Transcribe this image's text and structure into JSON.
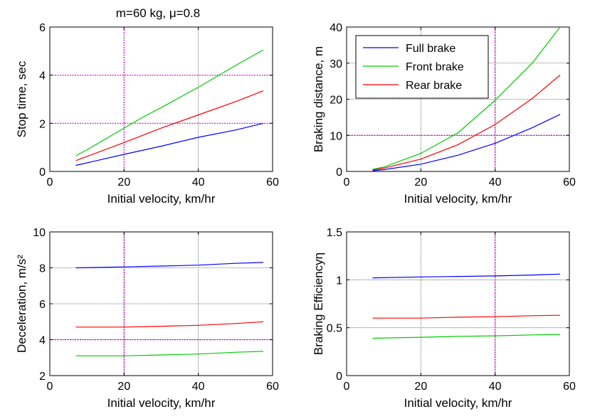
{
  "figure": {
    "title": "m=60 kg, μ=0.8"
  },
  "colors": {
    "full": "#0000ff",
    "front": "#00cc00",
    "rear": "#ff0000",
    "guide": "#cc00cc",
    "grid": "#555555"
  },
  "chart_data": [
    {
      "type": "line",
      "panel": "top-left",
      "title": "m=60 kg, μ=0.8",
      "xlabel": "Initial velocity, km/hr",
      "ylabel": "Stop time, sec",
      "xlim": [
        0,
        60
      ],
      "ylim": [
        0,
        6
      ],
      "xticks": [
        "0",
        "20",
        "40",
        "60"
      ],
      "yticks": [
        "0",
        "2",
        "4",
        "6"
      ],
      "grid": false,
      "guides": {
        "x": [
          20
        ],
        "y": [
          2,
          4
        ],
        "gray_x": [
          40
        ]
      },
      "series": [
        {
          "key": "full",
          "x": [
            7,
            20,
            30,
            40,
            50,
            57.5
          ],
          "y": [
            0.25,
            0.71,
            1.05,
            1.42,
            1.72,
            2.0
          ]
        },
        {
          "key": "front",
          "x": [
            7,
            10,
            20,
            25,
            30,
            40,
            45,
            50,
            57.5
          ],
          "y": [
            0.65,
            0.9,
            1.8,
            2.25,
            2.65,
            3.5,
            3.95,
            4.4,
            5.05
          ]
        },
        {
          "key": "rear",
          "x": [
            7,
            20,
            30,
            40,
            50,
            57.5
          ],
          "y": [
            0.45,
            1.2,
            1.8,
            2.35,
            2.9,
            3.35
          ]
        }
      ]
    },
    {
      "type": "line",
      "panel": "top-right",
      "xlabel": "Initial velocity, km/hr",
      "ylabel": "Braking distance, m",
      "xlim": [
        0,
        60
      ],
      "ylim": [
        0,
        40
      ],
      "xticks": [
        "0",
        "20",
        "40",
        "60"
      ],
      "yticks": [
        "0",
        "10",
        "20",
        "30",
        "40"
      ],
      "grid": true,
      "guides": {
        "x": [
          40
        ],
        "y": [
          10
        ]
      },
      "legend": {
        "position": "top-left",
        "entries": [
          "Full brake",
          "Front brake",
          "Rear brake"
        ]
      },
      "series": [
        {
          "key": "full",
          "name": "Full brake",
          "x": [
            7,
            10,
            20,
            30,
            40,
            50,
            57.5
          ],
          "y": [
            0.2,
            0.5,
            2.0,
            4.5,
            7.8,
            12.1,
            15.8
          ]
        },
        {
          "key": "front",
          "name": "Front brake",
          "x": [
            7,
            10,
            20,
            30,
            40,
            50,
            57.5
          ],
          "y": [
            0.6,
            1.2,
            5.0,
            10.7,
            19.7,
            30.0,
            40.0
          ]
        },
        {
          "key": "rear",
          "name": "Rear brake",
          "x": [
            7,
            10,
            20,
            30,
            40,
            50,
            57.5
          ],
          "y": [
            0.4,
            0.9,
            3.4,
            7.4,
            13.0,
            20.2,
            26.7
          ]
        }
      ]
    },
    {
      "type": "line",
      "panel": "bottom-left",
      "xlabel": "Initial velocity, km/hr",
      "ylabel": "Deceleration, m/s²",
      "xlim": [
        0,
        60
      ],
      "ylim": [
        2,
        10
      ],
      "xticks": [
        "0",
        "20",
        "40",
        "60"
      ],
      "yticks": [
        "2",
        "4",
        "6",
        "8",
        "10"
      ],
      "grid": true,
      "guides": {
        "x": [
          20
        ],
        "y": [
          4
        ]
      },
      "series": [
        {
          "key": "full",
          "x": [
            7,
            20,
            30,
            40,
            50,
            57.5
          ],
          "y": [
            8.0,
            8.05,
            8.1,
            8.15,
            8.25,
            8.3
          ]
        },
        {
          "key": "front",
          "x": [
            7,
            20,
            30,
            40,
            50,
            57.5
          ],
          "y": [
            3.1,
            3.1,
            3.15,
            3.2,
            3.3,
            3.35
          ]
        },
        {
          "key": "rear",
          "x": [
            7,
            20,
            30,
            40,
            50,
            57.5
          ],
          "y": [
            4.7,
            4.7,
            4.75,
            4.8,
            4.9,
            5.0
          ]
        }
      ]
    },
    {
      "type": "line",
      "panel": "bottom-right",
      "xlabel": "Initial velocity, km/hr",
      "ylabel": "Braking Efficiencyη",
      "xlim": [
        0,
        60
      ],
      "ylim": [
        0,
        1.5
      ],
      "xticks": [
        "0",
        "20",
        "40",
        "60"
      ],
      "yticks": [
        "0",
        "0.5",
        "1",
        "1.5"
      ],
      "grid": true,
      "guides": {
        "x": [
          40
        ],
        "y": []
      },
      "series": [
        {
          "key": "full",
          "x": [
            7,
            20,
            30,
            40,
            50,
            57.5
          ],
          "y": [
            1.02,
            1.03,
            1.035,
            1.04,
            1.05,
            1.06
          ]
        },
        {
          "key": "front",
          "x": [
            7,
            20,
            30,
            40,
            50,
            57.5
          ],
          "y": [
            0.39,
            0.4,
            0.41,
            0.415,
            0.425,
            0.43
          ]
        },
        {
          "key": "rear",
          "x": [
            7,
            20,
            30,
            40,
            50,
            57.5
          ],
          "y": [
            0.6,
            0.6,
            0.61,
            0.615,
            0.625,
            0.63
          ]
        }
      ]
    }
  ]
}
